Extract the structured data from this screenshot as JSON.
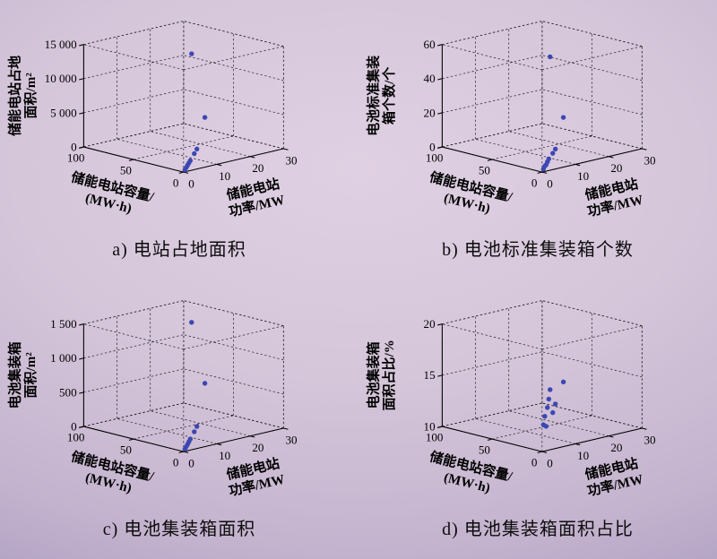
{
  "figure": {
    "point_color": "#3d47b3",
    "background_center": "#e0d0e3",
    "background_edge": "#a495bc",
    "axis_color": "#000000",
    "grid_color": "#1b1b1b"
  },
  "chart_data": [
    {
      "type": "scatter",
      "id": "a",
      "caption": "a) 电站占地面积",
      "zlabel_lines": [
        "储能电站占地",
        "面积/m²"
      ],
      "ylabel_lines": [
        "储能电站容量/",
        "(MW·h)"
      ],
      "xlabel_lines": [
        "储能电站",
        "功率/MW"
      ],
      "xlim": [
        0,
        30
      ],
      "ylim": [
        0,
        100
      ],
      "zlim": [
        0,
        15000
      ],
      "x_ticks": [
        0,
        10,
        20,
        30
      ],
      "y_ticks": [
        0,
        50,
        100
      ],
      "z_ticks": [
        0,
        5000,
        10000,
        15000
      ],
      "x_tick_labels": [
        "0",
        "10",
        "20",
        "30"
      ],
      "y_tick_labels": [
        "0",
        "50",
        "100"
      ],
      "z_tick_labels": [
        "0",
        "5 000",
        "10 000",
        "15 000"
      ],
      "grid": true,
      "points": [
        [
          1,
          2,
          150
        ],
        [
          2,
          4,
          300
        ],
        [
          3,
          6,
          450
        ],
        [
          4,
          8,
          600
        ],
        [
          5,
          10,
          750
        ],
        [
          8,
          16,
          1200
        ],
        [
          10,
          20,
          1500
        ],
        [
          16,
          32,
          5000
        ],
        [
          6,
          12,
          16200
        ]
      ]
    },
    {
      "type": "scatter",
      "id": "b",
      "caption": "b) 电池标准集装箱个数",
      "zlabel_lines": [
        "电池标准集装",
        "箱个数/个"
      ],
      "ylabel_lines": [
        "储能电站容量/",
        "(MW·h)"
      ],
      "xlabel_lines": [
        "储能电站",
        "功率/MW"
      ],
      "xlim": [
        0,
        30
      ],
      "ylim": [
        0,
        100
      ],
      "zlim": [
        0,
        60
      ],
      "x_ticks": [
        0,
        10,
        20,
        30
      ],
      "y_ticks": [
        0,
        50,
        100
      ],
      "z_ticks": [
        0,
        20,
        40,
        60
      ],
      "x_tick_labels": [
        "0",
        "10",
        "20",
        "30"
      ],
      "y_tick_labels": [
        "0",
        "50",
        "100"
      ],
      "z_tick_labels": [
        "0",
        "20",
        "40",
        "60"
      ],
      "grid": true,
      "points": [
        [
          1,
          2,
          1
        ],
        [
          2,
          4,
          2
        ],
        [
          3,
          6,
          2
        ],
        [
          4,
          8,
          3
        ],
        [
          5,
          10,
          4
        ],
        [
          8,
          16,
          5
        ],
        [
          10,
          20,
          6
        ],
        [
          16,
          32,
          20
        ],
        [
          6,
          12,
          63
        ]
      ]
    },
    {
      "type": "scatter",
      "id": "c",
      "caption": "c) 电池集装箱面积",
      "zlabel_lines": [
        "电池集装箱",
        "面积/m²"
      ],
      "ylabel_lines": [
        "储能电站容量/",
        "(MW·h)"
      ],
      "xlabel_lines": [
        "储能电站",
        "功率/MW"
      ],
      "xlim": [
        0,
        30
      ],
      "ylim": [
        0,
        100
      ],
      "zlim": [
        0,
        1500
      ],
      "x_ticks": [
        0,
        10,
        20,
        30
      ],
      "y_ticks": [
        0,
        50,
        100
      ],
      "z_ticks": [
        0,
        500,
        1000,
        1500
      ],
      "x_tick_labels": [
        "0",
        "10",
        "20",
        "30"
      ],
      "y_tick_labels": [
        "0",
        "50",
        "100"
      ],
      "z_tick_labels": [
        "0",
        "500",
        "1 000",
        "1 500"
      ],
      "grid": true,
      "points": [
        [
          1,
          2,
          18
        ],
        [
          2,
          4,
          35
        ],
        [
          3,
          6,
          50
        ],
        [
          4,
          8,
          70
        ],
        [
          5,
          10,
          90
        ],
        [
          8,
          16,
          140
        ],
        [
          10,
          20,
          180
        ],
        [
          16,
          32,
          700
        ],
        [
          6,
          12,
          1780
        ]
      ]
    },
    {
      "type": "scatter",
      "id": "d",
      "caption": "d) 电池集装箱面积占比",
      "zlabel_lines": [
        "电池集装箱",
        "面积占比/%"
      ],
      "ylabel_lines": [
        "储能电站容量/",
        "(MW·h)"
      ],
      "xlabel_lines": [
        "储能电站",
        "功率/MW"
      ],
      "xlim": [
        0,
        30
      ],
      "ylim": [
        0,
        100
      ],
      "zlim": [
        10,
        20
      ],
      "x_ticks": [
        0,
        10,
        20,
        30
      ],
      "y_ticks": [
        0,
        50,
        100
      ],
      "z_ticks": [
        10,
        15,
        20
      ],
      "x_tick_labels": [
        "0",
        "10",
        "20",
        "30"
      ],
      "y_tick_labels": [
        "0",
        "50",
        "100"
      ],
      "z_tick_labels": [
        "10",
        "15",
        "20"
      ],
      "grid": true,
      "points": [
        [
          1,
          2,
          12.5
        ],
        [
          2,
          4,
          13.2
        ],
        [
          3,
          6,
          12.1
        ],
        [
          4,
          8,
          13.8
        ],
        [
          5,
          10,
          14.5
        ],
        [
          8,
          16,
          12.8
        ],
        [
          10,
          20,
          13.4
        ],
        [
          16,
          32,
          14.8
        ],
        [
          6,
          12,
          15.3
        ]
      ]
    }
  ]
}
